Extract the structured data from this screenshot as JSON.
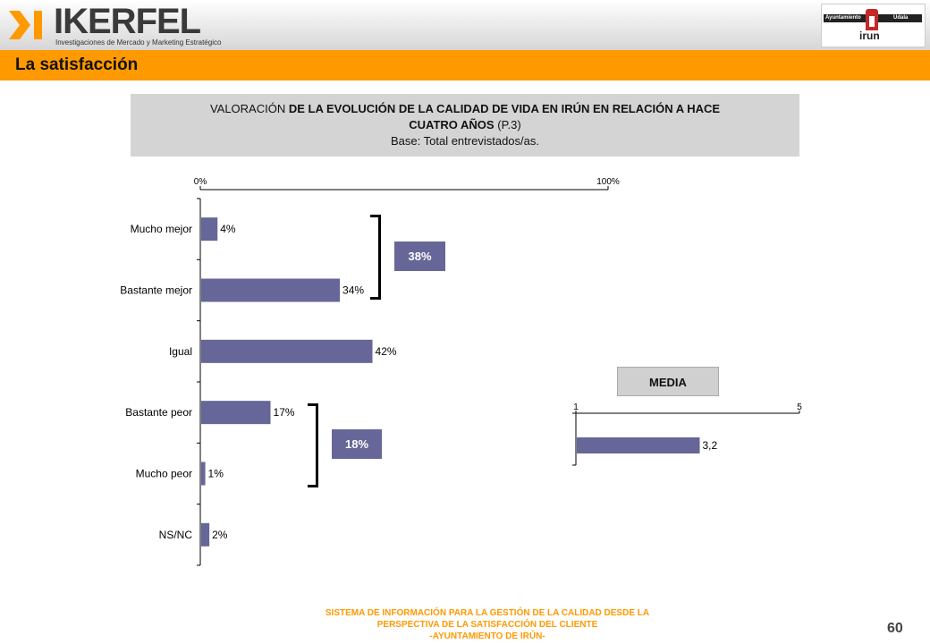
{
  "header": {
    "brand": "IKERFEL",
    "brand_sub": "Investigaciones de Mercado y Marketing Estratégico",
    "city_logo": {
      "left": "Ayuntamiento",
      "right": "Udala",
      "name": "irun"
    }
  },
  "section_title": "La satisfacción",
  "question": {
    "lead": "VALORACIÓN",
    "bold_part": "DE LA EVOLUCIÓN DE LA CALIDAD DE VIDA EN IRÚN EN RELACIÓN A HACE",
    "line2_bold": "CUATRO AÑOS",
    "line2_rest": "(P.3)",
    "base": "Base: Total entrevistados/as."
  },
  "chart_data": [
    {
      "type": "bar",
      "orientation": "horizontal",
      "categories": [
        "Mucho mejor",
        "Bastante mejor",
        "Igual",
        "Bastante peor",
        "Mucho peor",
        "NS/NC"
      ],
      "values": [
        4,
        34,
        42,
        17,
        1,
        2
      ],
      "data_labels": [
        "4%",
        "34%",
        "42%",
        "17%",
        "1%",
        "2%"
      ],
      "axis_labels": [
        "0%",
        "100%"
      ],
      "xlim": [
        0,
        100
      ],
      "color": "#666699",
      "groups": [
        {
          "label": "38%",
          "covers": [
            "Mucho mejor",
            "Bastante mejor"
          ]
        },
        {
          "label": "18%",
          "covers": [
            "Bastante peor",
            "Mucho peor"
          ]
        }
      ]
    },
    {
      "type": "bar",
      "orientation": "horizontal",
      "title": "MEDIA",
      "categories": [
        ""
      ],
      "values": [
        3.2
      ],
      "data_labels": [
        "3,2"
      ],
      "axis_labels": [
        "1",
        "5"
      ],
      "xlim": [
        1,
        5
      ],
      "color": "#666699"
    }
  ],
  "footer": {
    "line1": "SISTEMA DE INFORMACIÓN PARA LA GESTIÓN DE LA CALIDAD DESDE LA",
    "line2": "PERSPECTIVA DE LA SATISFACCIÓN DEL CLIENTE",
    "line3": "-AYUNTAMIENTO DE IRÚN-"
  },
  "page_number": "60"
}
